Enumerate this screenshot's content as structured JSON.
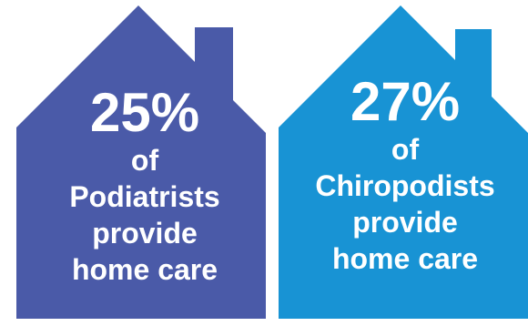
{
  "colors": {
    "house_left": "#4a5aa8",
    "house_right": "#1893d4",
    "text": "#ffffff"
  },
  "chart_data": {
    "type": "infographic",
    "items": [
      {
        "value_label": "25%",
        "value": 25,
        "lines": [
          "of",
          "Podiatrists",
          "provide",
          "home care"
        ],
        "color": "#4a5aa8"
      },
      {
        "value_label": "27%",
        "value": 27,
        "lines": [
          "of",
          "Chiropodists",
          "provide",
          "home care"
        ],
        "color": "#1893d4"
      }
    ]
  }
}
